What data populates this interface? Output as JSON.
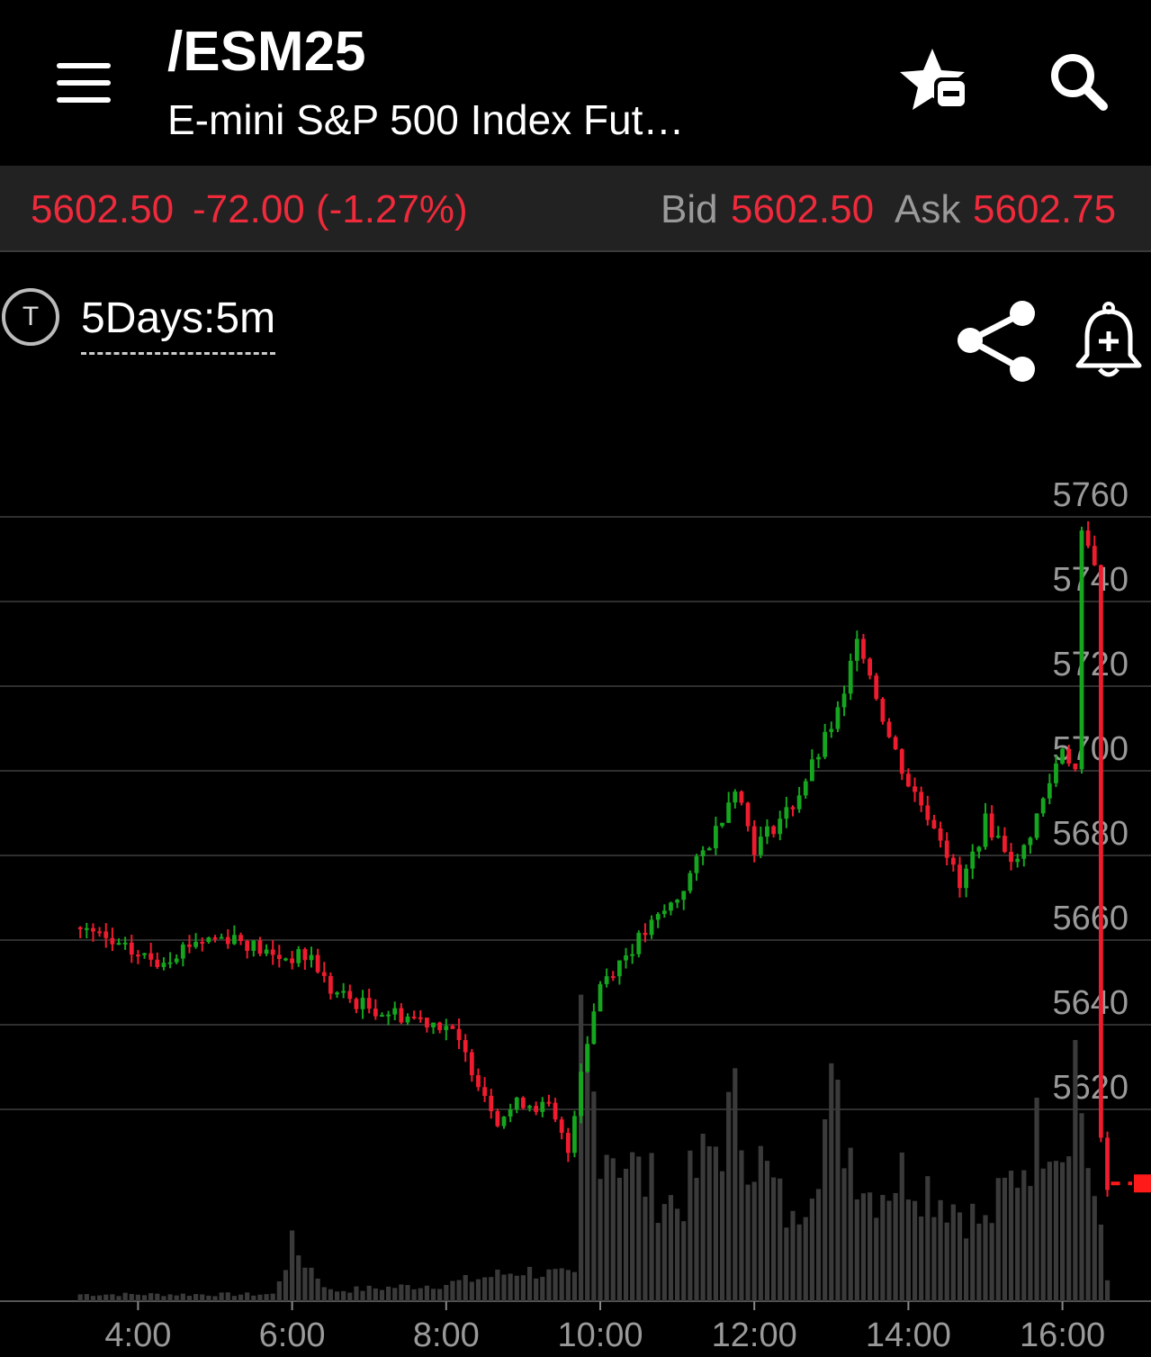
{
  "header": {
    "symbol": "/ESM25",
    "description": "E-mini S&P 500 Index Fut…",
    "menu_icon": "hamburger-menu-icon",
    "watchlist_icon": "star-remove-icon",
    "search_icon": "search-icon"
  },
  "quote": {
    "last": "5602.50",
    "change": "-72.00 (-1.27%)",
    "bid_label": "Bid",
    "bid": "5602.50",
    "ask_label": "Ask",
    "ask": "5602.75"
  },
  "toolbar": {
    "type_badge": "T",
    "period": "5Days:5m",
    "share_icon": "share-icon",
    "alert_icon": "add-alert-bell-icon"
  },
  "colors": {
    "up": "#16a51f",
    "down": "#ee1c2e",
    "last_price_line": "#ff1a1a",
    "volume": "#3a3a3a",
    "grid": "#3f3f3f",
    "negative_text": "#ee2a3b",
    "label_gray": "#9a9a9a"
  },
  "chart_data": {
    "type": "candlestick",
    "interval": "5m",
    "y_axis_ticks": [
      5760,
      5740,
      5720,
      5700,
      5680,
      5660,
      5640,
      5620
    ],
    "x_axis_ticks": [
      "4:00",
      "6:00",
      "8:00",
      "10:00",
      "12:00",
      "14:00",
      "16:00"
    ],
    "ylim": [
      5590,
      5770
    ],
    "last_price": 5602.5,
    "price_path": [
      [
        "3:15",
        5663
      ],
      [
        "3:45",
        5658
      ],
      [
        "4:15",
        5655
      ],
      [
        "4:45",
        5660
      ],
      [
        "5:15",
        5661
      ],
      [
        "5:45",
        5656
      ],
      [
        "6:15",
        5656
      ],
      [
        "6:30",
        5648
      ],
      [
        "7:00",
        5644
      ],
      [
        "7:30",
        5642
      ],
      [
        "8:00",
        5640
      ],
      [
        "8:20",
        5630
      ],
      [
        "8:40",
        5618
      ],
      [
        "9:00",
        5622
      ],
      [
        "9:20",
        5620
      ],
      [
        "9:35",
        5610
      ],
      [
        "9:45",
        5630
      ],
      [
        "10:00",
        5650
      ],
      [
        "10:30",
        5660
      ],
      [
        "11:00",
        5670
      ],
      [
        "11:30",
        5686
      ],
      [
        "11:45",
        5697
      ],
      [
        "12:00",
        5682
      ],
      [
        "12:30",
        5692
      ],
      [
        "12:50",
        5704
      ],
      [
        "13:10",
        5717
      ],
      [
        "13:20",
        5733
      ],
      [
        "13:45",
        5708
      ],
      [
        "14:00",
        5697
      ],
      [
        "14:25",
        5685
      ],
      [
        "14:40",
        5672
      ],
      [
        "15:00",
        5688
      ],
      [
        "15:25",
        5678
      ],
      [
        "15:45",
        5693
      ],
      [
        "16:00",
        5706
      ],
      [
        "16:10",
        5700
      ],
      [
        "16:15",
        5755
      ],
      [
        "16:25",
        5750
      ],
      [
        "16:30",
        5612
      ],
      [
        "16:35",
        5602.5
      ]
    ],
    "volume_profile": [
      [
        "3:15",
        2
      ],
      [
        "5:45",
        2
      ],
      [
        "6:00",
        16
      ],
      [
        "6:30",
        3
      ],
      [
        "8:00",
        5
      ],
      [
        "9:00",
        9
      ],
      [
        "9:40",
        7
      ],
      [
        "9:45",
        78
      ],
      [
        "10:00",
        50
      ],
      [
        "10:30",
        37
      ],
      [
        "11:00",
        28
      ],
      [
        "11:45",
        55
      ],
      [
        "12:30",
        22
      ],
      [
        "13:00",
        58
      ],
      [
        "13:30",
        32
      ],
      [
        "14:00",
        38
      ],
      [
        "15:00",
        22
      ],
      [
        "15:50",
        55
      ],
      [
        "16:00",
        46
      ],
      [
        "16:10",
        72
      ],
      [
        "16:20",
        42
      ],
      [
        "16:35",
        6
      ]
    ]
  }
}
